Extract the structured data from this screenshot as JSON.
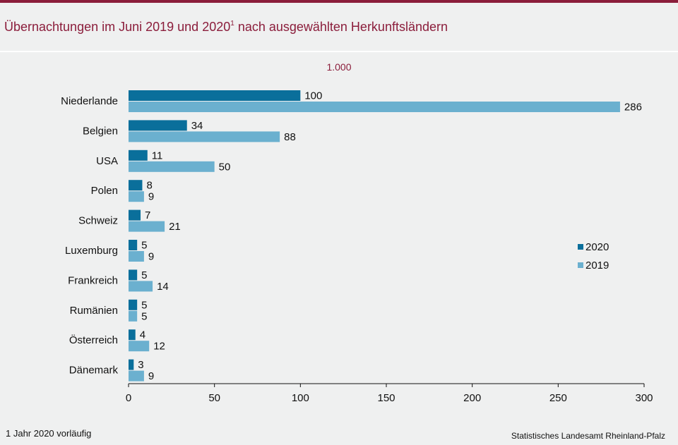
{
  "title": {
    "text_before": "Übernachtungen im Juni 2019 und 2020",
    "footnote_mark": "1",
    "text_after": " nach ausgewählten Herkunftsländern"
  },
  "unit_label": "1.000",
  "footnote": "1 Jahr 2020 vorläufig",
  "source": "Statistisches Landesamt  Rheinland-Pfalz",
  "colors": {
    "accent": "#8b1d3b",
    "series_2020": "#0a6f9b",
    "series_2019": "#6bb0cf"
  },
  "chart_data": {
    "type": "bar",
    "orientation": "horizontal",
    "categories": [
      "Niederlande",
      "Belgien",
      "USA",
      "Polen",
      "Schweiz",
      "Luxemburg",
      "Frankreich",
      "Rumänien",
      "Österreich",
      "Dänemark"
    ],
    "series": [
      {
        "name": "2020",
        "color": "#0a6f9b",
        "values": [
          100,
          34,
          11,
          8,
          7,
          5,
          5,
          5,
          4,
          3
        ]
      },
      {
        "name": "2019",
        "color": "#6bb0cf",
        "values": [
          286,
          88,
          50,
          9,
          21,
          9,
          14,
          5,
          12,
          9
        ]
      }
    ],
    "xlim": [
      0,
      300
    ],
    "xticks": [
      0,
      50,
      100,
      150,
      200,
      250,
      300
    ],
    "xlabel": "",
    "ylabel": "",
    "grid": false,
    "legend": "right"
  }
}
